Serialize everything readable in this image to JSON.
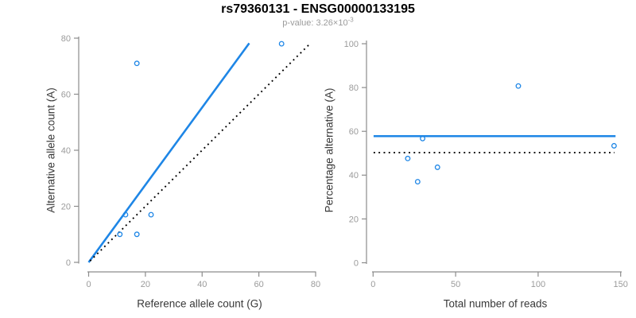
{
  "header": {
    "title": "rs79360131 - ENSG00000133195",
    "subtitle_prefix": "p-value: 3.26×10",
    "subtitle_exponent": "-3"
  },
  "colors": {
    "accent_blue": "#1e86e6",
    "axis_gray": "#8c8c8c",
    "tick_label_gray": "#9b9b9b",
    "axis_title_color": "#383838",
    "title_color": "#000000",
    "subtitle_gray": "#9b9b9b",
    "reference_black": "#000000",
    "background": "#ffffff"
  },
  "chart_data": [
    {
      "type": "scatter",
      "panel": "allele-counts",
      "xlabel": "Reference allele count (G)",
      "ylabel": "Alternative allele count (A)",
      "xlim": [
        0,
        80
      ],
      "ylim": [
        0,
        80
      ],
      "xticks": [
        0,
        20,
        40,
        60,
        80
      ],
      "yticks": [
        0,
        20,
        40,
        60,
        80
      ],
      "grid": false,
      "legend": false,
      "marker": "open-circle",
      "points": [
        [
          17,
          71
        ],
        [
          68,
          78
        ],
        [
          13,
          17
        ],
        [
          22,
          17
        ],
        [
          11,
          10
        ],
        [
          17,
          10
        ]
      ],
      "lines": [
        {
          "name": "fit-line",
          "style": "solid",
          "color_key": "accent_blue",
          "from": [
            0,
            0
          ],
          "to": [
            56.6,
            78.2
          ]
        },
        {
          "name": "identity-line",
          "style": "dotted",
          "color_key": "reference_black",
          "from": [
            0.5,
            0.5
          ],
          "to": [
            78,
            78
          ]
        }
      ]
    },
    {
      "type": "scatter",
      "panel": "percentage-alternative",
      "xlabel": "Total number of reads",
      "ylabel": "Percentage alternative (A)",
      "xlim": [
        0,
        150
      ],
      "ylim": [
        0,
        100
      ],
      "xticks": [
        0,
        50,
        100,
        150
      ],
      "yticks": [
        0,
        20,
        40,
        60,
        80,
        100
      ],
      "grid": false,
      "legend": false,
      "marker": "open-circle",
      "points": [
        [
          88,
          80.7
        ],
        [
          30,
          56.7
        ],
        [
          146,
          53.4
        ],
        [
          21,
          47.6
        ],
        [
          39,
          43.6
        ],
        [
          27,
          37.0
        ]
      ],
      "lines": [
        {
          "name": "mean-percentage-line",
          "style": "solid",
          "color_key": "accent_blue",
          "from": [
            0.3,
            57.8
          ],
          "to": [
            146.9,
            57.8
          ]
        },
        {
          "name": "fifty-percent-reference-line",
          "style": "dotted",
          "color_key": "reference_black",
          "from": [
            0.3,
            50.3
          ],
          "to": [
            146.3,
            50.3
          ]
        }
      ]
    }
  ]
}
